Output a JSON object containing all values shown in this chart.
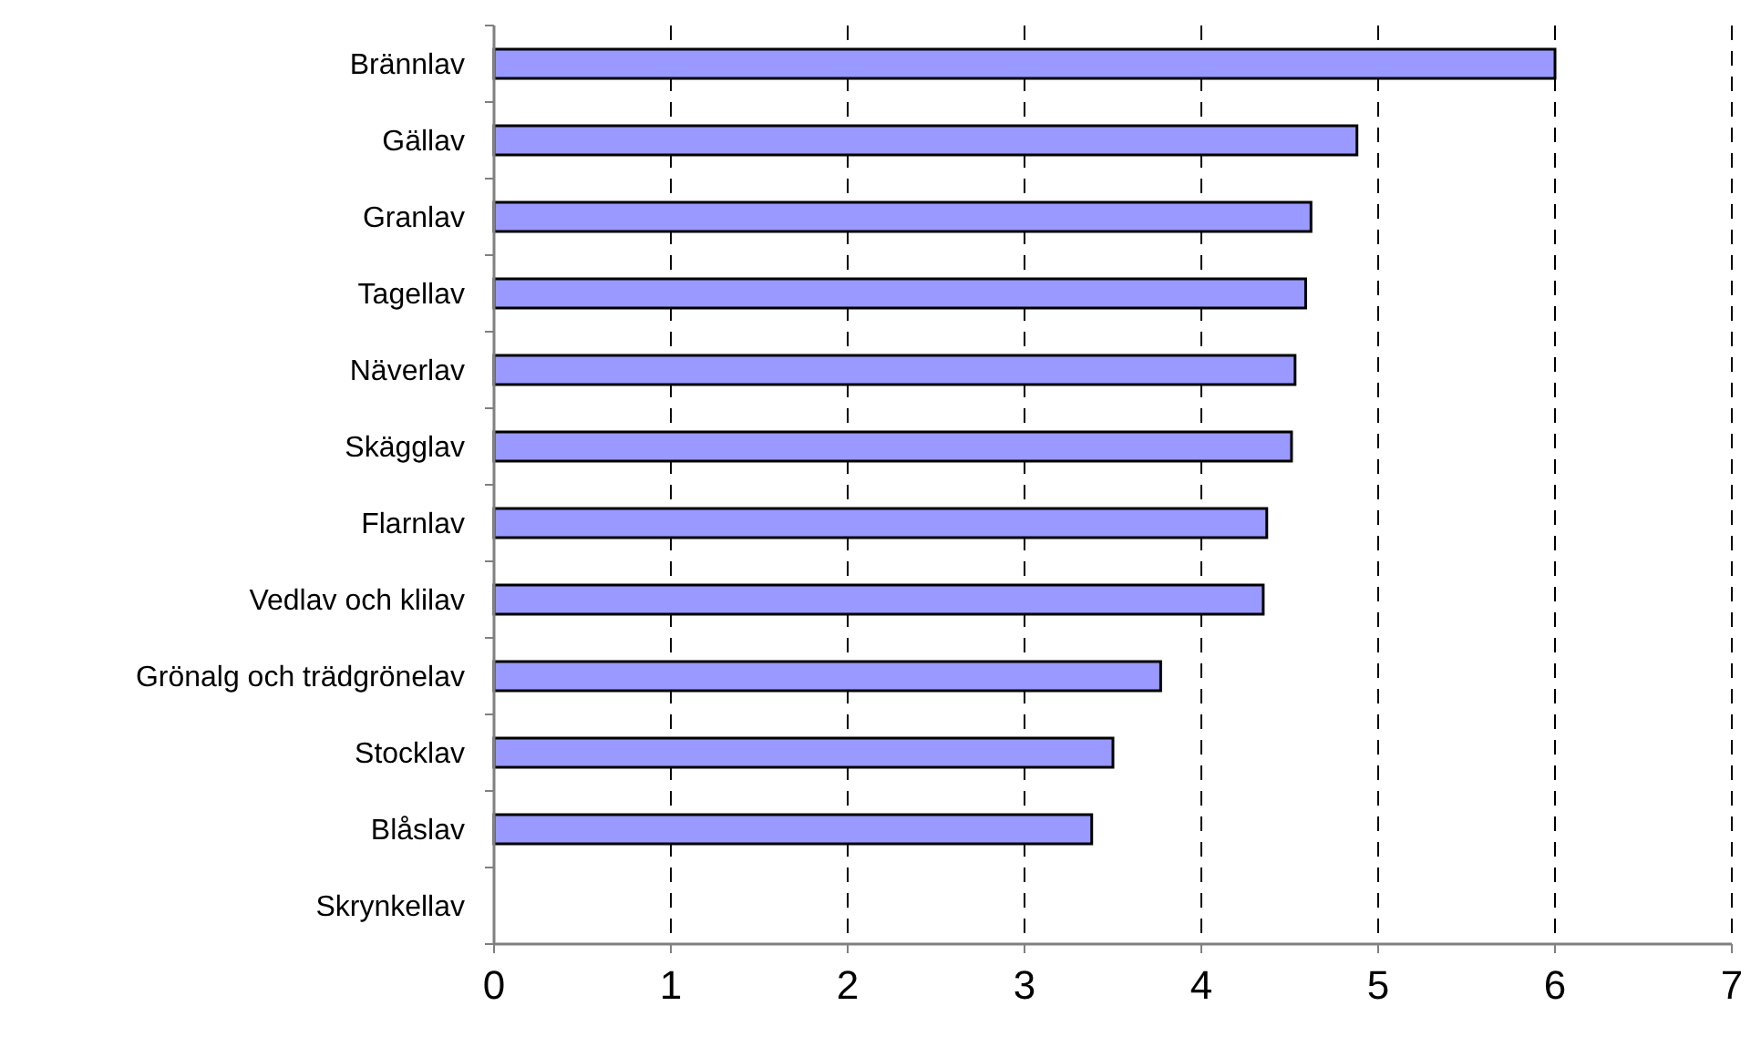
{
  "chart_data": {
    "type": "bar",
    "orientation": "horizontal",
    "categories": [
      "Brännlav",
      "Gällav",
      "Granlav",
      "Tagellav",
      "Näverlav",
      "Skägglav",
      "Flarnlav",
      "Vedlav och klilav",
      "Grönalg och trädgrönelav",
      "Stocklav",
      "Blåslav",
      "Skrynkellav"
    ],
    "values": [
      6.0,
      4.88,
      4.62,
      4.59,
      4.53,
      4.51,
      4.37,
      4.35,
      3.77,
      3.5,
      3.38,
      0
    ],
    "color": "#9999ff",
    "xlim": [
      0,
      7
    ],
    "xticks": [
      0,
      1,
      2,
      3,
      4,
      5,
      6,
      7
    ],
    "grid": "x"
  }
}
